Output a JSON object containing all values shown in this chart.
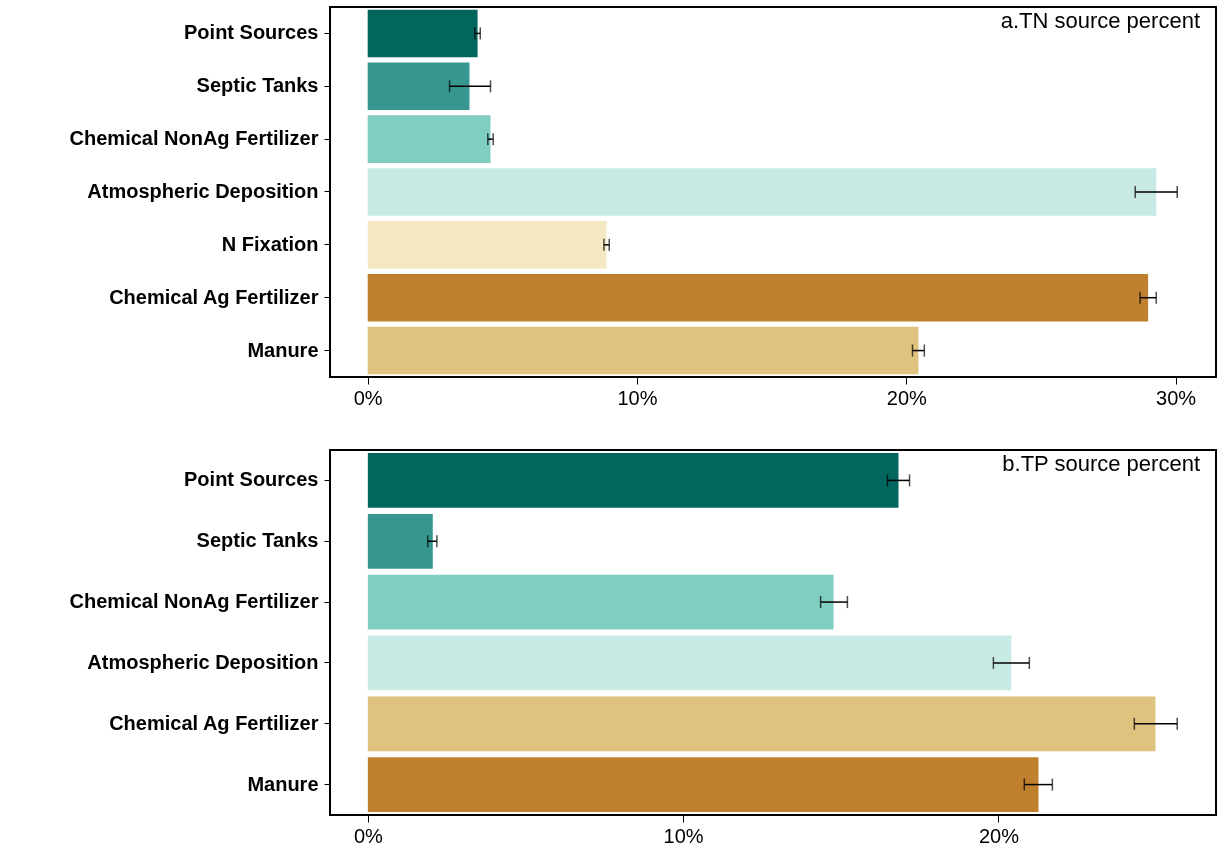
{
  "chart_data": [
    {
      "type": "bar",
      "orientation": "horizontal",
      "title": "a.TN source percent",
      "categories": [
        "Point Sources",
        "Septic Tanks",
        "Chemical NonAg Fertilizer",
        "Atmospheric Deposition",
        "N Fixation",
        "Chemical Ag Fertilizer",
        "Manure"
      ],
      "values": [
        4.08,
        3.78,
        4.56,
        29.28,
        8.87,
        28.98,
        20.45
      ],
      "errors": [
        [
          3.98,
          4.18
        ],
        [
          3.04,
          4.56
        ],
        [
          4.46,
          4.66
        ],
        [
          28.5,
          30.06
        ],
        [
          8.77,
          8.97
        ],
        [
          28.68,
          29.28
        ],
        [
          20.23,
          20.67
        ]
      ],
      "colors": [
        "#01665e",
        "#35978f",
        "#80cdc1",
        "#c7eae5",
        "#f6e8c3",
        "#bf812d",
        "#dfc27d"
      ],
      "xlim": [
        -1.4,
        31.5
      ],
      "xticks": [
        {
          "value": 0,
          "label": "0%"
        },
        {
          "value": 10,
          "label": "10%"
        },
        {
          "value": 20,
          "label": "20%"
        },
        {
          "value": 30,
          "label": "30%"
        }
      ]
    },
    {
      "type": "bar",
      "orientation": "horizontal",
      "title": "b.TP source percent",
      "categories": [
        "Point Sources",
        "Septic Tanks",
        "Chemical NonAg Fertilizer",
        "Atmospheric Deposition",
        "Chemical Ag Fertilizer",
        "Manure"
      ],
      "values": [
        16.83,
        2.06,
        14.77,
        20.41,
        24.98,
        21.27
      ],
      "errors": [
        [
          16.48,
          17.18
        ],
        [
          1.9,
          2.19
        ],
        [
          14.36,
          15.21
        ],
        [
          19.84,
          20.98
        ],
        [
          24.31,
          25.67
        ],
        [
          20.82,
          21.71
        ]
      ],
      "colors": [
        "#01665e",
        "#35978f",
        "#80cdc1",
        "#c7eae5",
        "#dfc27d",
        "#bf812d"
      ],
      "xlim": [
        -1.2,
        26.9
      ],
      "xticks": [
        {
          "value": 0,
          "label": "0%"
        },
        {
          "value": 10,
          "label": "10%"
        },
        {
          "value": 20,
          "label": "20%"
        }
      ]
    }
  ]
}
